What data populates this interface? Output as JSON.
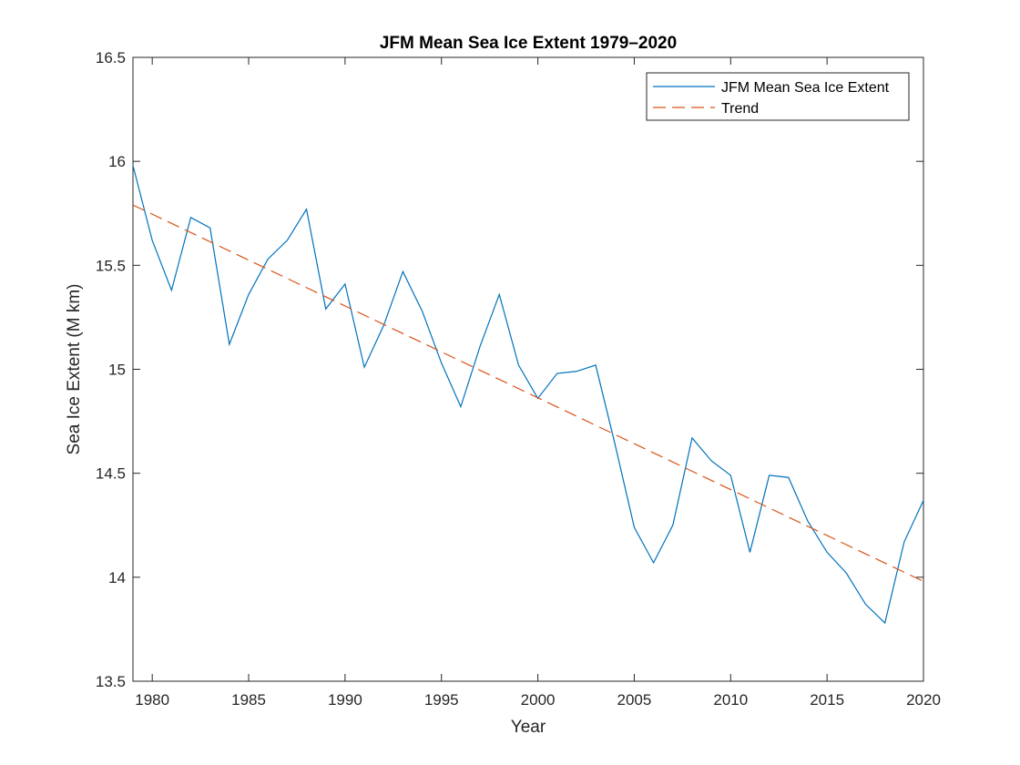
{
  "chart_data": {
    "type": "line",
    "title": "JFM Mean Sea Ice Extent 1979–2020",
    "xlabel": "Year",
    "ylabel": "Sea Ice Extent (M km)",
    "xlim": [
      1979,
      2020
    ],
    "ylim": [
      13.5,
      16.5
    ],
    "xticks": [
      1980,
      1985,
      1990,
      1995,
      2000,
      2005,
      2010,
      2015,
      2020
    ],
    "yticks": [
      13.5,
      14,
      14.5,
      15,
      15.5,
      16,
      16.5
    ],
    "legend_position": "top-right",
    "grid": false,
    "series": [
      {
        "name": "JFM Mean Sea Ice Extent",
        "style": "solid",
        "color": "#0072BD",
        "x": [
          1979,
          1980,
          1981,
          1982,
          1983,
          1984,
          1985,
          1986,
          1987,
          1988,
          1989,
          1990,
          1991,
          1992,
          1993,
          1994,
          1995,
          1996,
          1997,
          1998,
          1999,
          2000,
          2001,
          2002,
          2003,
          2004,
          2005,
          2006,
          2007,
          2008,
          2009,
          2010,
          2011,
          2012,
          2013,
          2014,
          2015,
          2016,
          2017,
          2018,
          2019,
          2020
        ],
        "y": [
          15.98,
          15.62,
          15.38,
          15.73,
          15.68,
          15.12,
          15.36,
          15.53,
          15.62,
          15.77,
          15.29,
          15.41,
          15.01,
          15.21,
          15.47,
          15.28,
          15.03,
          14.82,
          15.11,
          15.36,
          15.02,
          14.86,
          14.98,
          14.99,
          15.02,
          14.64,
          14.24,
          14.07,
          14.25,
          14.67,
          14.56,
          14.49,
          14.12,
          14.49,
          14.48,
          14.27,
          14.12,
          14.02,
          13.87,
          13.78,
          14.17,
          14.37
        ]
      },
      {
        "name": "Trend",
        "style": "dashed",
        "color": "#D95319",
        "x": [
          1979,
          2020
        ],
        "y": [
          15.79,
          13.98
        ]
      }
    ]
  }
}
